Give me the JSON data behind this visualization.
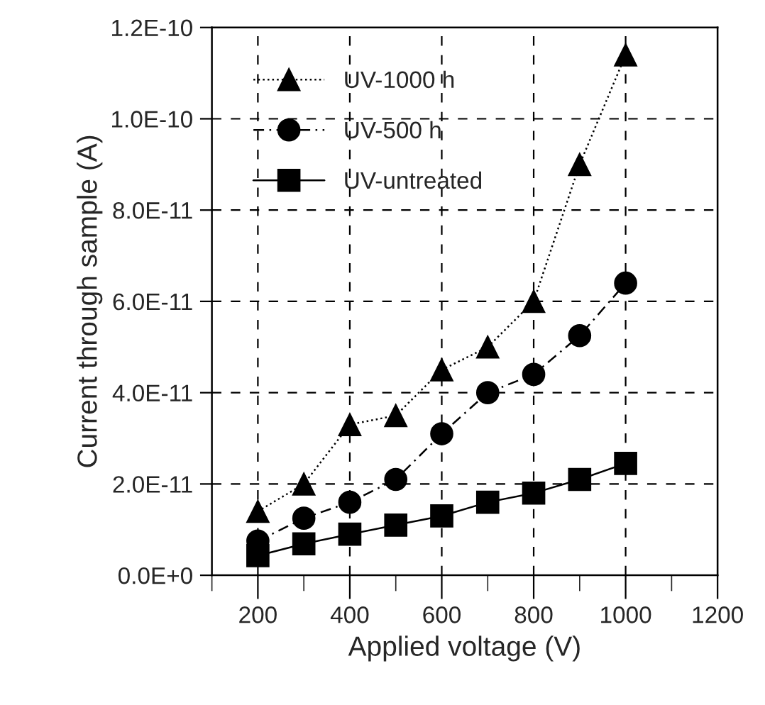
{
  "chart_data": {
    "type": "line",
    "xlabel": "Applied voltage (V)",
    "ylabel": "Current through sample (A)",
    "x": [
      200,
      300,
      400,
      500,
      600,
      700,
      800,
      900,
      1000
    ],
    "series": [
      {
        "name": "UV-1000 h",
        "color": "#000000",
        "marker": "triangle",
        "line_style": "dotted",
        "values": [
          1.4e-11,
          2e-11,
          3.3e-11,
          3.5e-11,
          4.5e-11,
          5e-11,
          6e-11,
          9e-11,
          1.14e-10
        ]
      },
      {
        "name": "UV-500 h",
        "color": "#000000",
        "marker": "circle",
        "line_style": "dashed",
        "values": [
          7.5e-12,
          1.25e-11,
          1.6e-11,
          2.1e-11,
          3.1e-11,
          4e-11,
          4.4e-11,
          5.25e-11,
          6.4e-11
        ]
      },
      {
        "name": "UV-untreated",
        "color": "#000000",
        "marker": "square",
        "line_style": "solid",
        "values": [
          4.3e-12,
          6.9e-12,
          9e-12,
          1.1e-11,
          1.3e-11,
          1.6e-11,
          1.8e-11,
          2.1e-11,
          2.45e-11
        ]
      }
    ],
    "xlim": [
      100,
      1200
    ],
    "xticks": [
      {
        "value": 100,
        "label": null
      },
      200,
      {
        "value": 300,
        "label": null
      },
      400,
      {
        "value": 500,
        "label": null
      },
      600,
      {
        "value": 700,
        "label": null
      },
      800,
      {
        "value": 900,
        "label": null
      },
      1000,
      {
        "value": 1100,
        "label": null
      },
      1200
    ],
    "ylim": [
      0,
      1.2e-10
    ],
    "yticks": [
      {
        "value": 0,
        "label": "0.0E+0"
      },
      {
        "value": 2e-11,
        "label": "2.0E-11"
      },
      {
        "value": 4e-11,
        "label": "4.0E-11"
      },
      {
        "value": 6e-11,
        "label": "6.0E-11"
      },
      {
        "value": 8e-11,
        "label": "8.0E-11"
      },
      {
        "value": 1e-10,
        "label": "1.0E-10"
      },
      {
        "value": 1.2e-10,
        "label": "1.2E-10"
      }
    ],
    "grid": true,
    "legend": "top left"
  }
}
